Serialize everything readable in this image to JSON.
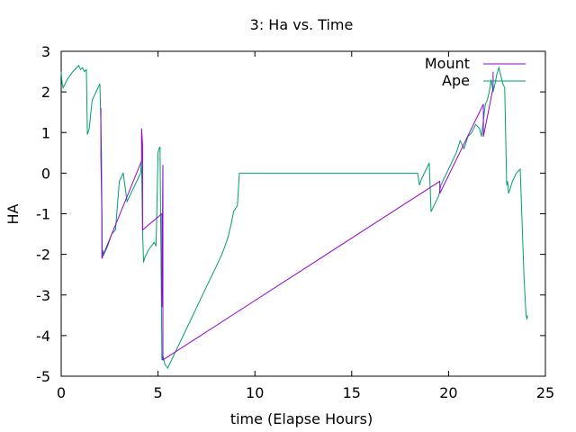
{
  "chart_data": {
    "type": "line",
    "title": "3: Ha vs. Time",
    "xlabel": "time (Elapse Hours)",
    "ylabel": "HA",
    "xlim": [
      0,
      25
    ],
    "ylim": [
      -5,
      3
    ],
    "xticks": [
      "0",
      "5",
      "10",
      "15",
      "20",
      "25"
    ],
    "yticks": [
      "3",
      "2",
      "1",
      "0",
      "-1",
      "-2",
      "-3",
      "-4",
      "-5"
    ],
    "grid": false,
    "legend_position": "top-right",
    "series": [
      {
        "name": "Mount",
        "color": "#9400d3",
        "x": [
          2.05,
          2.05,
          2.1,
          2.1,
          4.15,
          4.15,
          4.2,
          4.2,
          5.2,
          5.2,
          5.25,
          5.25,
          19.55,
          19.55,
          21.8,
          21.8,
          22.3,
          22.3
        ],
        "y": [
          1.6,
          0.4,
          -1.0,
          -2.1,
          0.3,
          1.1,
          0.7,
          -1.4,
          -1.0,
          -3.3,
          0.2,
          -4.6,
          -0.2,
          -0.5,
          1.7,
          0.9,
          2.1,
          2.5
        ]
      },
      {
        "name": "Ape",
        "color": "#009e73",
        "x": [
          0.0,
          0.05,
          0.1,
          0.3,
          0.6,
          0.9,
          1.0,
          1.1,
          1.2,
          1.3,
          1.35,
          1.45,
          1.6,
          1.7,
          1.9,
          2.0,
          2.05,
          2.08,
          2.1,
          2.12,
          2.15,
          2.2,
          2.3,
          2.4,
          2.6,
          2.8,
          3.0,
          3.2,
          3.4,
          3.6,
          3.8,
          4.0,
          4.1,
          4.15,
          4.2,
          4.25,
          4.3,
          4.5,
          4.8,
          4.9,
          5.0,
          5.05,
          5.1,
          5.2,
          5.25,
          5.3,
          5.35,
          5.5,
          5.55,
          5.7,
          6.0,
          6.5,
          7.0,
          7.5,
          8.0,
          8.3,
          8.6,
          8.8,
          8.9,
          9.1,
          9.2,
          10.0,
          12.0,
          14.0,
          16.0,
          18.0,
          18.4,
          18.5,
          18.6,
          19.0,
          19.1,
          19.3,
          19.5,
          19.6,
          19.8,
          20.0,
          20.2,
          20.4,
          20.6,
          20.8,
          21.0,
          21.2,
          21.4,
          21.6,
          21.7,
          21.8,
          21.9,
          22.0,
          22.1,
          22.2,
          22.3,
          22.4,
          22.5,
          22.6,
          22.7,
          22.8,
          22.9,
          23.0,
          23.05,
          23.1,
          23.2,
          23.3,
          23.5,
          23.7,
          23.9,
          24.0,
          24.05,
          24.08
        ],
        "y": [
          2.5,
          2.2,
          2.1,
          2.3,
          2.5,
          2.65,
          2.55,
          2.6,
          2.5,
          2.55,
          0.95,
          1.1,
          1.8,
          1.9,
          2.1,
          2.2,
          1.2,
          0.4,
          -1.0,
          -2.1,
          -1.9,
          -2.0,
          -1.9,
          -1.8,
          -1.5,
          -1.4,
          -0.2,
          0.0,
          -0.7,
          -0.5,
          -0.3,
          -0.1,
          0.0,
          0.3,
          -1.4,
          -2.2,
          -2.1,
          -1.9,
          -1.7,
          -1.8,
          0.5,
          0.6,
          0.65,
          -4.6,
          -4.5,
          -4.6,
          -4.7,
          -4.8,
          -4.75,
          -4.6,
          -4.3,
          -3.8,
          -3.3,
          -2.8,
          -2.3,
          -2.0,
          -1.6,
          -1.2,
          -0.95,
          -0.8,
          0.0,
          0.0,
          0.0,
          0.0,
          0.0,
          0.0,
          0.0,
          -0.3,
          -0.15,
          0.25,
          -0.95,
          -0.75,
          -0.55,
          -0.3,
          -0.1,
          0.1,
          0.3,
          0.5,
          0.8,
          0.6,
          0.9,
          1.0,
          1.2,
          1.1,
          0.9,
          1.3,
          1.7,
          1.8,
          2.0,
          2.3,
          2.0,
          2.2,
          2.45,
          2.6,
          2.4,
          2.2,
          2.1,
          -0.3,
          -0.2,
          -0.5,
          -0.35,
          -0.2,
          0.0,
          0.1,
          -2.6,
          -3.5,
          -3.6,
          -3.5
        ]
      }
    ]
  }
}
